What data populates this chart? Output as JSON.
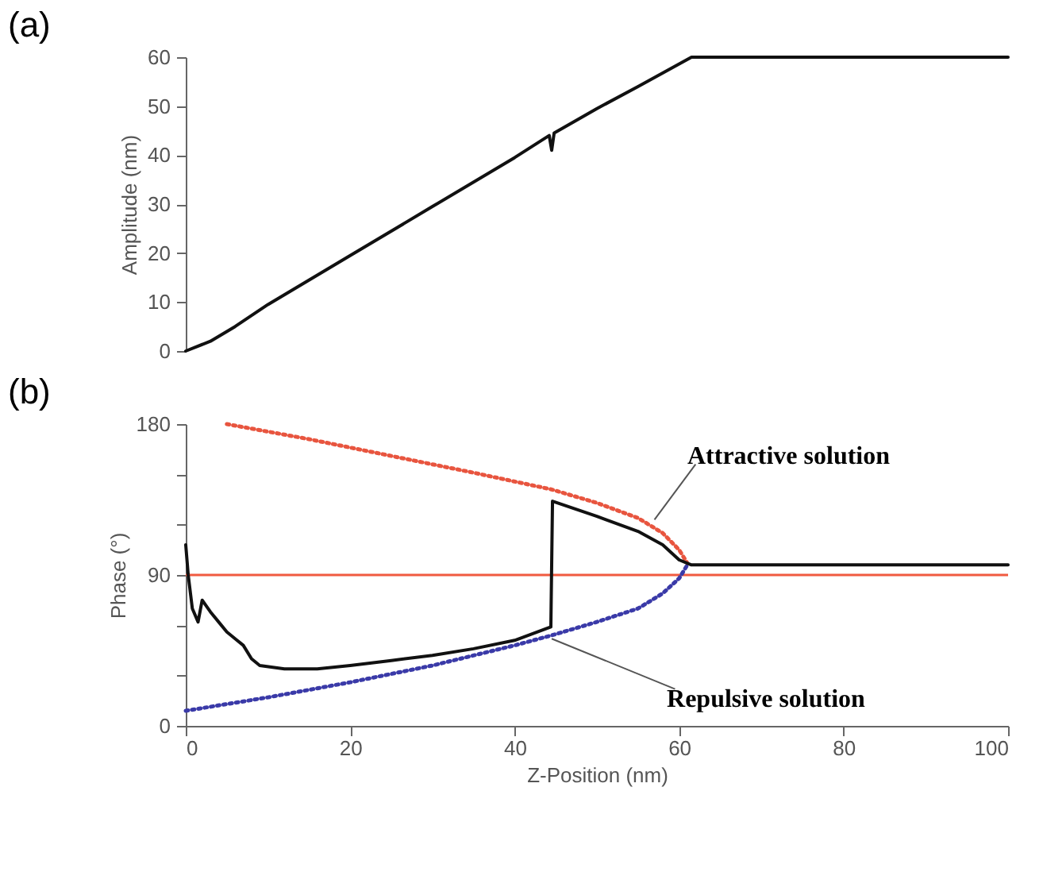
{
  "chart_data": [
    {
      "type": "line",
      "title": "(a)",
      "ylabel": "Amplitude (nm)",
      "xlim": [
        0,
        100
      ],
      "ylim": [
        0,
        60
      ],
      "yticks": [
        0,
        10,
        20,
        30,
        40,
        50,
        60
      ],
      "tick_labels": "y",
      "grid": false,
      "legend": false,
      "series": [
        {
          "color": "#111111",
          "x": [
            0,
            3,
            6,
            10,
            20,
            30,
            40,
            44.2,
            44.5,
            44.8,
            50,
            55,
            61.5,
            70,
            80,
            90,
            100
          ],
          "values": [
            0,
            2,
            5,
            9.5,
            19.5,
            29.5,
            39.5,
            44,
            41,
            44.5,
            49.5,
            54,
            60,
            60,
            60,
            60,
            60
          ]
        }
      ]
    },
    {
      "type": "line",
      "title": "(b)",
      "xlabel": "Z-Position (nm)",
      "ylabel": "Phase (°)",
      "xlim": [
        0,
        100
      ],
      "xticks": [
        0,
        20,
        40,
        60,
        80,
        100
      ],
      "ylim": [
        0,
        180
      ],
      "yticks": [
        0,
        {
          "value": 30,
          "label": null
        },
        {
          "value": 60,
          "label": null
        },
        90,
        {
          "value": 120,
          "label": null
        },
        {
          "value": 150,
          "label": null
        },
        180
      ],
      "grid": false,
      "legend": false,
      "series": [
        {
          "color": "#e8553f",
          "line_style": "dotted",
          "x": [
            5,
            15,
            25,
            35,
            44.5,
            50,
            55,
            58,
            60,
            61
          ],
          "values": [
            180,
            171,
            161,
            151,
            141,
            133,
            124,
            115,
            105,
            97
          ]
        },
        {
          "color": "#3a3aa8",
          "line_style": "dotted",
          "x": [
            0,
            10,
            20,
            30,
            40,
            44.5,
            50,
            55,
            58,
            60,
            61
          ],
          "values": [
            9,
            17,
            26,
            36,
            48,
            54,
            62,
            70,
            79,
            88,
            96
          ]
        },
        {
          "color": "#111111",
          "line_style": "solid",
          "x": [
            0,
            0.3,
            0.8,
            1.5,
            2,
            3,
            4,
            5,
            6,
            7,
            8,
            9,
            12,
            16,
            20,
            25,
            30,
            35,
            40,
            44.4,
            44.6,
            50,
            55,
            58,
            60,
            61.5,
            70,
            80,
            90,
            100
          ],
          "values": [
            108,
            90,
            70,
            62,
            75,
            68,
            62,
            56,
            52,
            48,
            40,
            36,
            34,
            34,
            36,
            39,
            42,
            46,
            51,
            59,
            134,
            125,
            116,
            108,
            99,
            96,
            96,
            96,
            96,
            96
          ]
        }
      ],
      "ref_lines": [
        {
          "axis": "y",
          "value": 90,
          "color": "#f05a40"
        }
      ],
      "annotations": [
        {
          "text": "Attractive solution",
          "x": 57,
          "y": 123
        },
        {
          "text": "Repulsive solution",
          "x": 44.5,
          "y": 52
        }
      ]
    }
  ]
}
